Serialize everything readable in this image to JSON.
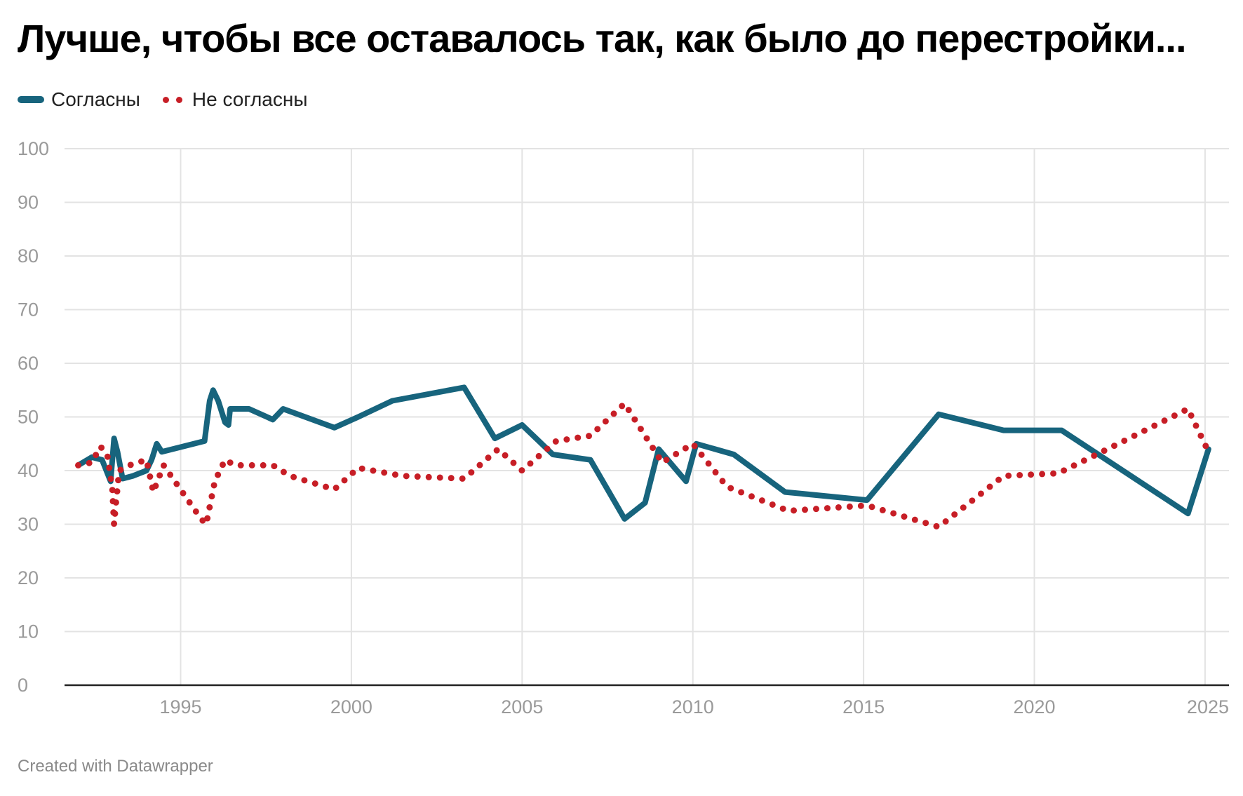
{
  "title": "Лучше, чтобы все оставалось так, как было до перестройки...",
  "footer": "Created with Datawrapper",
  "chart_data": {
    "type": "line",
    "title": "Лучше, чтобы все оставалось так, как было до перестройки...",
    "xlabel": "",
    "ylabel": "",
    "xlim": [
      1991.6,
      2025.7
    ],
    "ylim": [
      0,
      100
    ],
    "y_ticks": [
      0,
      10,
      20,
      30,
      40,
      50,
      60,
      70,
      80,
      90,
      100
    ],
    "x_ticks": [
      1995,
      2000,
      2005,
      2010,
      2015,
      2020,
      2025
    ],
    "grid": true,
    "legend_position": "top-left",
    "series": [
      {
        "name": "Согласны",
        "color": "#17647d",
        "style": "solid",
        "x": [
          1992.0,
          1992.4,
          1992.7,
          1992.95,
          1993.05,
          1993.15,
          1993.3,
          1993.6,
          1994.0,
          1994.15,
          1994.3,
          1994.45,
          1995.7,
          1995.85,
          1995.95,
          1996.1,
          1996.3,
          1996.4,
          1996.45,
          1997.0,
          1997.7,
          1998.0,
          1999.5,
          2000.2,
          2001.2,
          2003.3,
          2004.2,
          2005.0,
          2005.9,
          2007.0,
          2008.0,
          2008.6,
          2009.0,
          2009.8,
          2010.1,
          2011.2,
          2012.7,
          2015.1,
          2017.2,
          2019.1,
          2020.8,
          2024.5,
          2025.1
        ],
        "values": [
          41,
          42.5,
          42,
          38,
          46,
          43.5,
          38.5,
          39,
          40,
          42,
          45,
          43.5,
          45.5,
          53,
          55,
          53,
          49,
          48.5,
          51.5,
          51.5,
          49.5,
          51.5,
          48,
          50,
          53,
          55.5,
          46,
          48.5,
          43,
          42,
          31,
          34,
          44,
          38,
          45,
          43,
          36,
          34.5,
          50.5,
          47.5,
          47.5,
          32,
          44
        ]
      },
      {
        "name": "Не согласны",
        "color": "#c71e26",
        "style": "dotted",
        "x": [
          1992.0,
          1992.4,
          1992.65,
          1992.85,
          1993.0,
          1993.05,
          1993.1,
          1993.2,
          1993.5,
          1994.0,
          1994.2,
          1994.5,
          1995.6,
          1995.75,
          1996.0,
          1996.3,
          1996.6,
          1997.7,
          1998.2,
          1999.5,
          2000.2,
          2001.5,
          2003.3,
          2004.3,
          2005.0,
          2006.0,
          2007.0,
          2008.0,
          2009.1,
          2010.0,
          2011.0,
          2012.8,
          2015.1,
          2017.2,
          2019.1,
          2020.7,
          2022.3,
          2024.5,
          2025.1
        ],
        "values": [
          41,
          41.5,
          44.5,
          43,
          36.5,
          30,
          33.5,
          40,
          41,
          42,
          36,
          41,
          31,
          30,
          38,
          42,
          41,
          41,
          39,
          36.5,
          40.5,
          39,
          38.5,
          44,
          40,
          45.5,
          46.5,
          52.5,
          41.5,
          45,
          37,
          32.5,
          33.5,
          29.5,
          39,
          39.5,
          44.5,
          51.5,
          43.5
        ]
      }
    ]
  }
}
